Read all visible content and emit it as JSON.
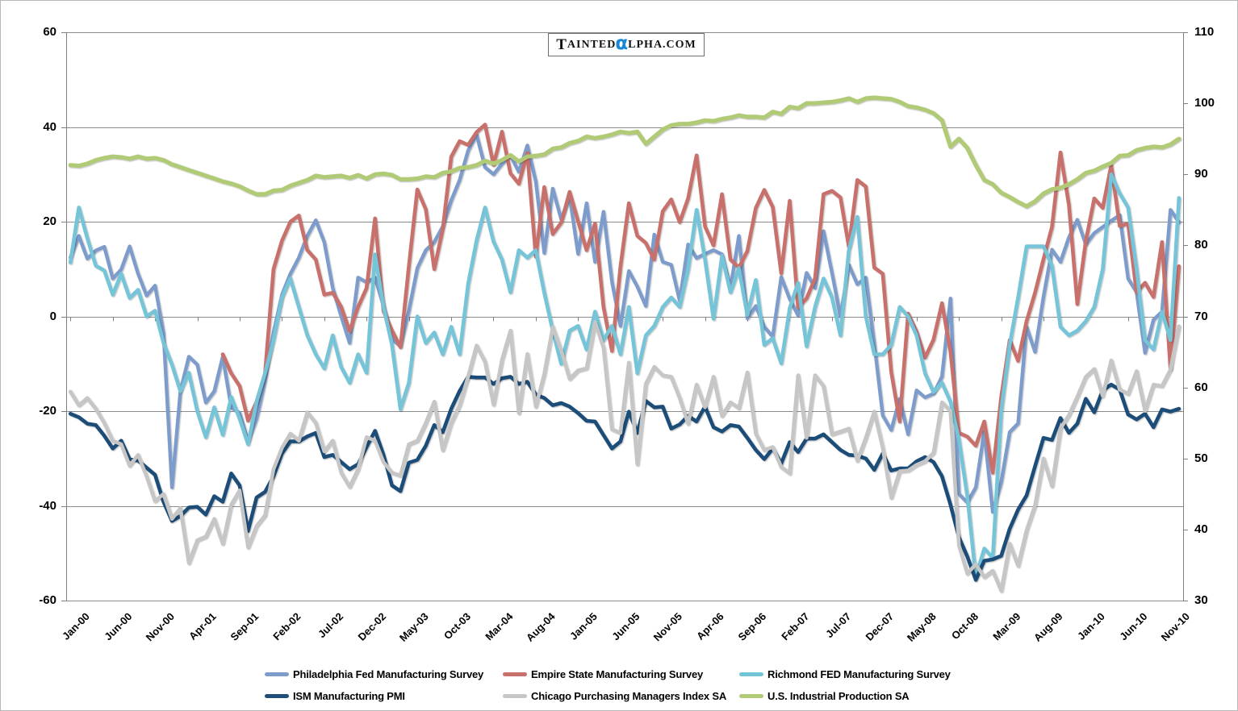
{
  "watermark": {
    "t": "T",
    "ainted": "AINTED",
    "alpha": "α",
    "rest": "LPHA.COM",
    "alpha_color": "#1787d8"
  },
  "chart_data": {
    "type": "line",
    "title": "",
    "xlabel": "",
    "ylabel_left": "",
    "ylabel_right": "",
    "grid": true,
    "legend_position": "bottom",
    "n_months": 132,
    "x_start": "Jan-00",
    "x_end": "Dec-10",
    "x_tick_every": 5,
    "x_tick_labels": [
      "Jan-00",
      "Jun-00",
      "Nov-00",
      "Apr-01",
      "Sep-01",
      "Feb-02",
      "Jul-02",
      "Dec-02",
      "May-03",
      "Oct-03",
      "Mar-04",
      "Aug-04",
      "Jan-05",
      "Jun-05",
      "Nov-05",
      "Apr-06",
      "Sep-06",
      "Feb-07",
      "Jul-07",
      "Dec-07",
      "May-08",
      "Oct-08",
      "Mar-09",
      "Aug-09",
      "Jan-10",
      "Jun-10",
      "Nov-10"
    ],
    "left_axis": {
      "min": -60,
      "max": 60,
      "step": 20,
      "tick_labels": [
        "60",
        "40",
        "20",
        "0",
        "-20",
        "-40",
        "-60"
      ]
    },
    "right_axis": {
      "min": 30,
      "max": 110,
      "step": 10,
      "tick_labels": [
        "110",
        "100",
        "90",
        "80",
        "70",
        "60",
        "50",
        "40",
        "30"
      ]
    },
    "grid_color": "#8c8c8c",
    "axis_color": "#808080",
    "series": [
      {
        "name": "Philadelphia Fed Manufacturing Survey",
        "color": "#7d9ccb",
        "axis": "left",
        "values": [
          12.4,
          17.0,
          12.2,
          13.9,
          14.7,
          8.0,
          9.9,
          14.8,
          9.0,
          4.4,
          6.5,
          -3.5,
          -36.1,
          -15.8,
          -8.5,
          -10.2,
          -18.2,
          -15.8,
          -8.5,
          -19.2,
          -20.4,
          -26.4,
          -21.6,
          -13.6,
          -3.4,
          4.6,
          9.0,
          12.4,
          17.0,
          20.3,
          15.7,
          6.0,
          0.0,
          -5.6,
          8.2,
          7.2,
          8.2,
          2.2,
          -4.8,
          -6.3,
          1.2,
          10.2,
          14.0,
          15.7,
          19.0,
          24.5,
          28.8,
          35.0,
          38.4,
          31.5,
          30.0,
          32.2,
          34.0,
          30.5,
          36.1,
          28.5,
          13.4,
          27.0,
          20.5,
          25.4,
          13.2,
          23.9,
          11.5,
          22.1,
          7.3,
          -2.0,
          9.6,
          6.3,
          2.2,
          17.3,
          11.5,
          10.9,
          3.3,
          15.2,
          12.3,
          13.2,
          14.0,
          13.1,
          6.0,
          17.0,
          -0.4,
          2.2,
          -2.2,
          -4.3,
          8.3,
          3.7,
          0.2,
          9.2,
          6.0,
          18.0,
          9.2,
          0.0,
          10.9,
          6.8,
          8.2,
          -5.7,
          -20.9,
          -24.0,
          -17.4,
          -24.9,
          -15.6,
          -17.1,
          -16.3,
          -12.7,
          3.8,
          -37.5,
          -39.3,
          -36.1,
          -24.3,
          -41.3,
          -35.0,
          -24.4,
          -22.6,
          -2.2,
          -7.5,
          4.2,
          14.1,
          11.5,
          16.7,
          20.4,
          15.2,
          17.6,
          18.9,
          20.2,
          21.4,
          8.0,
          5.1,
          -7.7,
          -0.7,
          1.0,
          22.5,
          19.9
        ]
      },
      {
        "name": "Empire State Manufacturing Survey",
        "color": "#c8706c",
        "axis": "left",
        "values": [
          null,
          null,
          null,
          null,
          null,
          null,
          null,
          null,
          null,
          null,
          null,
          null,
          null,
          null,
          null,
          null,
          null,
          null,
          -8.0,
          -12.0,
          -14.7,
          -22.0,
          -18.0,
          -12.0,
          10.0,
          16.0,
          20.0,
          21.3,
          14.0,
          12.0,
          4.6,
          5.0,
          2.0,
          -3.1,
          2.0,
          6.0,
          20.7,
          1.1,
          -3.0,
          -6.5,
          10.6,
          26.8,
          22.6,
          10.0,
          18.4,
          33.7,
          37.0,
          36.2,
          38.9,
          40.5,
          32.0,
          39.0,
          30.2,
          28.0,
          34.5,
          12.6,
          27.3,
          17.4,
          19.8,
          26.3,
          20.1,
          14.0,
          19.6,
          2.0,
          -7.3,
          10.5,
          23.9,
          17.0,
          15.5,
          12.0,
          22.2,
          24.7,
          19.9,
          24.9,
          34.0,
          19.0,
          15.0,
          25.8,
          12.0,
          10.3,
          13.8,
          22.9,
          26.7,
          23.1,
          9.1,
          24.4,
          1.9,
          3.8,
          8.0,
          25.8,
          26.5,
          25.1,
          14.7,
          28.8,
          27.4,
          10.3,
          9.0,
          -11.7,
          -22.2,
          0.6,
          -3.2,
          -8.7,
          -4.9,
          2.8,
          -7.4,
          -24.6,
          -25.4,
          -27.3,
          -22.2,
          -33.0,
          -17.0,
          -5.0,
          -9.4,
          -1.0,
          5.0,
          12.1,
          18.9,
          34.6,
          23.5,
          2.6,
          15.9,
          24.9,
          22.9,
          31.9,
          19.1,
          19.6,
          5.1,
          7.1,
          4.1,
          15.7,
          -11.1,
          10.6
        ]
      },
      {
        "name": "Richmond FED Manufacturing Survey",
        "color": "#74c4d8",
        "axis": "left",
        "values": [
          11.4,
          23.0,
          16.5,
          10.7,
          9.7,
          4.6,
          9.0,
          3.9,
          5.6,
          0.0,
          1.2,
          -5.6,
          -10.2,
          -15.8,
          -11.9,
          -20.0,
          -25.5,
          -19.2,
          -25.0,
          -17.0,
          -21.6,
          -27.0,
          -18.0,
          -12.0,
          -5.0,
          4.0,
          8.0,
          2.0,
          -4.0,
          -8.0,
          -11.0,
          -4.0,
          -10.7,
          -14.0,
          -8.0,
          -11.9,
          13.1,
          2.0,
          -6.0,
          -19.6,
          -14.0,
          0.0,
          -5.6,
          -3.4,
          -8.0,
          -2.2,
          -8.0,
          6.8,
          16.0,
          23.0,
          15.8,
          12.0,
          5.1,
          14.0,
          12.4,
          14.0,
          5.0,
          -3.0,
          -10.0,
          -3.0,
          -2.0,
          -7.0,
          1.0,
          -5.0,
          -2.0,
          -8.0,
          2.0,
          -12.0,
          -4.0,
          -2.0,
          2.0,
          4.0,
          2.0,
          10.0,
          22.5,
          12.0,
          -0.5,
          12.8,
          5.1,
          10.2,
          0.3,
          7.7,
          -6.0,
          -4.6,
          -9.9,
          1.7,
          7.1,
          -6.3,
          2.0,
          8.0,
          4.0,
          -4.0,
          14.0,
          21.0,
          0.0,
          -8.0,
          -8.0,
          -6.0,
          2.0,
          0.0,
          -4.0,
          -12.0,
          -16.0,
          -14.0,
          -18.0,
          -26.0,
          -38.0,
          -55.0,
          -49.0,
          -51.0,
          -20.0,
          -6.0,
          4.0,
          14.8,
          14.8,
          14.8,
          10.7,
          -2.2,
          -4.0,
          -3.0,
          -1.0,
          2.0,
          10.0,
          30.0,
          26.0,
          23.0,
          10.0,
          -5.0,
          -7.0,
          1.0,
          -5.0,
          25.0
        ]
      },
      {
        "name": "ISM Manufacturing PMI",
        "color": "#1f4e79",
        "axis": "right",
        "values": [
          56.3,
          55.8,
          54.9,
          54.7,
          53.2,
          51.4,
          52.5,
          49.9,
          49.7,
          48.7,
          47.7,
          43.9,
          41.2,
          41.9,
          43.1,
          43.2,
          42.1,
          44.7,
          43.9,
          47.9,
          46.2,
          39.8,
          44.5,
          45.3,
          47.5,
          50.7,
          52.4,
          52.4,
          53.1,
          53.6,
          50.2,
          50.5,
          49.5,
          48.5,
          49.2,
          51.6,
          53.9,
          50.5,
          46.2,
          45.4,
          49.4,
          49.8,
          51.8,
          54.7,
          53.7,
          57.0,
          59.5,
          61.5,
          61.4,
          61.4,
          60.5,
          61.3,
          61.5,
          60.5,
          60.8,
          59.0,
          58.5,
          57.5,
          57.8,
          57.3,
          56.4,
          55.3,
          55.2,
          53.3,
          51.4,
          52.4,
          56.6,
          53.6,
          58.1,
          57.2,
          57.3,
          54.2,
          54.8,
          56.0,
          55.2,
          57.3,
          54.4,
          53.8,
          54.7,
          54.5,
          52.9,
          51.2,
          49.9,
          51.4,
          49.3,
          52.3,
          50.9,
          52.8,
          52.8,
          53.4,
          52.3,
          51.2,
          50.5,
          50.4,
          50.0,
          48.4,
          50.7,
          48.3,
          48.6,
          48.6,
          49.6,
          50.2,
          49.5,
          47.5,
          43.5,
          38.9,
          36.2,
          32.9,
          35.6,
          35.8,
          36.3,
          40.1,
          42.8,
          44.8,
          48.9,
          52.9,
          52.6,
          55.7,
          53.6,
          54.9,
          58.4,
          56.5,
          59.6,
          60.4,
          59.7,
          56.2,
          55.5,
          56.3,
          54.4,
          56.9,
          56.6,
          57.0
        ]
      },
      {
        "name": "Chicago Purchasing Managers Index SA",
        "color": "#c6c6c6",
        "axis": "right",
        "values": [
          59.4,
          57.5,
          58.5,
          57.0,
          55.0,
          52.5,
          52.0,
          49.0,
          50.5,
          47.5,
          44.0,
          45.0,
          41.5,
          43.0,
          35.3,
          38.5,
          39.0,
          41.5,
          38.0,
          43.5,
          45.5,
          37.5,
          40.5,
          42.0,
          48.5,
          51.5,
          53.5,
          52.5,
          56.5,
          55.0,
          51.0,
          52.5,
          48.0,
          46.0,
          48.5,
          53.0,
          52.5,
          49.5,
          48.0,
          47.6,
          52.0,
          52.5,
          55.0,
          58.0,
          51.2,
          55.0,
          57.5,
          61.5,
          65.9,
          63.6,
          57.6,
          63.9,
          68.0,
          56.4,
          64.7,
          57.3,
          61.9,
          68.5,
          65.2,
          61.2,
          62.4,
          62.7,
          69.2,
          65.6,
          54.1,
          53.6,
          63.5,
          49.2,
          60.5,
          62.9,
          61.7,
          61.5,
          58.5,
          54.9,
          60.4,
          57.2,
          61.5,
          56.0,
          57.9,
          57.1,
          62.1,
          53.5,
          51.2,
          51.6,
          48.8,
          47.9,
          61.7,
          52.9,
          61.7,
          60.2,
          53.4,
          53.8,
          54.2,
          49.7,
          52.9,
          56.6,
          51.5,
          44.5,
          48.2,
          48.3,
          49.1,
          49.6,
          50.8,
          57.9,
          56.7,
          37.8,
          33.8,
          35.1,
          33.3,
          34.2,
          31.4,
          38.0,
          34.9,
          39.9,
          43.4,
          50.0,
          46.1,
          54.2,
          56.1,
          58.7,
          61.5,
          62.6,
          58.8,
          63.8,
          59.7,
          59.1,
          62.3,
          56.7,
          60.4,
          60.2,
          62.5,
          68.6
        ]
      },
      {
        "name": "U.S. Industrial Production SA",
        "color": "#b0ca76",
        "axis": "right",
        "values": [
          91.3,
          91.2,
          91.5,
          92.0,
          92.3,
          92.5,
          92.4,
          92.2,
          92.5,
          92.2,
          92.3,
          92.0,
          91.4,
          91.0,
          90.6,
          90.2,
          89.8,
          89.4,
          89.0,
          88.7,
          88.3,
          87.7,
          87.2,
          87.2,
          87.7,
          87.8,
          88.4,
          88.8,
          89.2,
          89.8,
          89.6,
          89.7,
          89.8,
          89.5,
          89.9,
          89.4,
          90.0,
          90.1,
          89.9,
          89.3,
          89.3,
          89.4,
          89.7,
          89.6,
          90.2,
          90.4,
          90.9,
          91.0,
          91.3,
          91.9,
          91.5,
          92.0,
          92.7,
          91.8,
          92.5,
          92.6,
          92.8,
          93.6,
          93.8,
          94.4,
          94.7,
          95.3,
          95.1,
          95.3,
          95.6,
          96.0,
          95.8,
          96.0,
          94.3,
          95.3,
          96.3,
          96.9,
          97.1,
          97.1,
          97.3,
          97.6,
          97.5,
          97.8,
          98.0,
          98.3,
          98.1,
          98.1,
          98.0,
          98.8,
          98.5,
          99.5,
          99.3,
          100.0,
          100.0,
          100.1,
          100.2,
          100.4,
          100.7,
          100.2,
          100.7,
          100.8,
          100.7,
          100.6,
          100.2,
          99.6,
          99.4,
          99.1,
          98.6,
          97.6,
          93.9,
          95.0,
          93.7,
          91.3,
          89.2,
          88.6,
          87.4,
          86.8,
          86.1,
          85.5,
          86.2,
          87.3,
          87.9,
          88.1,
          88.6,
          89.3,
          90.2,
          90.5,
          91.1,
          91.6,
          92.6,
          92.7,
          93.4,
          93.7,
          93.9,
          93.8,
          94.2,
          95.0
        ]
      }
    ]
  }
}
